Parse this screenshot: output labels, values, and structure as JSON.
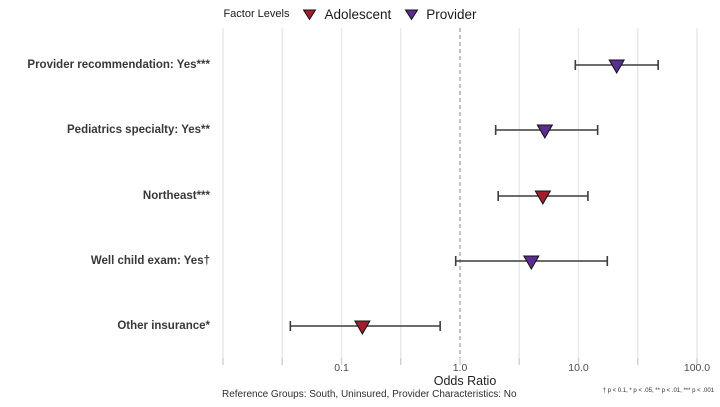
{
  "legend": {
    "title": "Factor Levels",
    "items": [
      {
        "label": "Adolescent",
        "color": "#a21e2d"
      },
      {
        "label": "Provider",
        "color": "#5b2d91"
      }
    ]
  },
  "chart_data": {
    "type": "scatter",
    "subtype": "forest-plot-odds-ratios",
    "xlabel": "Odds Ratio",
    "x_scale": "log10",
    "xlim": [
      0.008,
      140
    ],
    "grid": true,
    "gridlines": [
      0.01,
      0.0316,
      0.1,
      0.316,
      3.16,
      10,
      31.6,
      100
    ],
    "reference_line": 1.0,
    "x_ticks": [
      {
        "value": 0.1,
        "label": "0.1"
      },
      {
        "value": 1.0,
        "label": "1.0"
      },
      {
        "value": 10.0,
        "label": "10.0"
      },
      {
        "value": 100.0,
        "label": "100.0"
      }
    ],
    "rows": [
      {
        "label": "Provider recommendation: Yes***",
        "group": "Provider",
        "or": 21.0,
        "ci_low": 9.4,
        "ci_high": 47.0
      },
      {
        "label": "Pediatrics specialty: Yes**",
        "group": "Provider",
        "or": 5.2,
        "ci_low": 2.0,
        "ci_high": 14.5
      },
      {
        "label": "Northeast***",
        "group": "Adolescent",
        "or": 5.0,
        "ci_low": 2.1,
        "ci_high": 12.0
      },
      {
        "label": "Well child exam: Yes†",
        "group": "Provider",
        "or": 4.0,
        "ci_low": 0.92,
        "ci_high": 17.5
      },
      {
        "label": "Other insurance*",
        "group": "Adolescent",
        "or": 0.15,
        "ci_low": 0.037,
        "ci_high": 0.68
      }
    ]
  },
  "footer": {
    "reference_note": "Reference Groups: South, Uninsured, Provider Characteristics: No",
    "significance_note": "† p < 0.1, * p < .05, ** p < .01, *** p < .001"
  },
  "colors": {
    "errorbar": "#3c3c3c",
    "gridline": "#e9e9e9",
    "tick": "#d2d2d2",
    "reference_line": "#9a9a9a",
    "marker_outline": "#111111",
    "tick_label": "#4d4d4d"
  }
}
